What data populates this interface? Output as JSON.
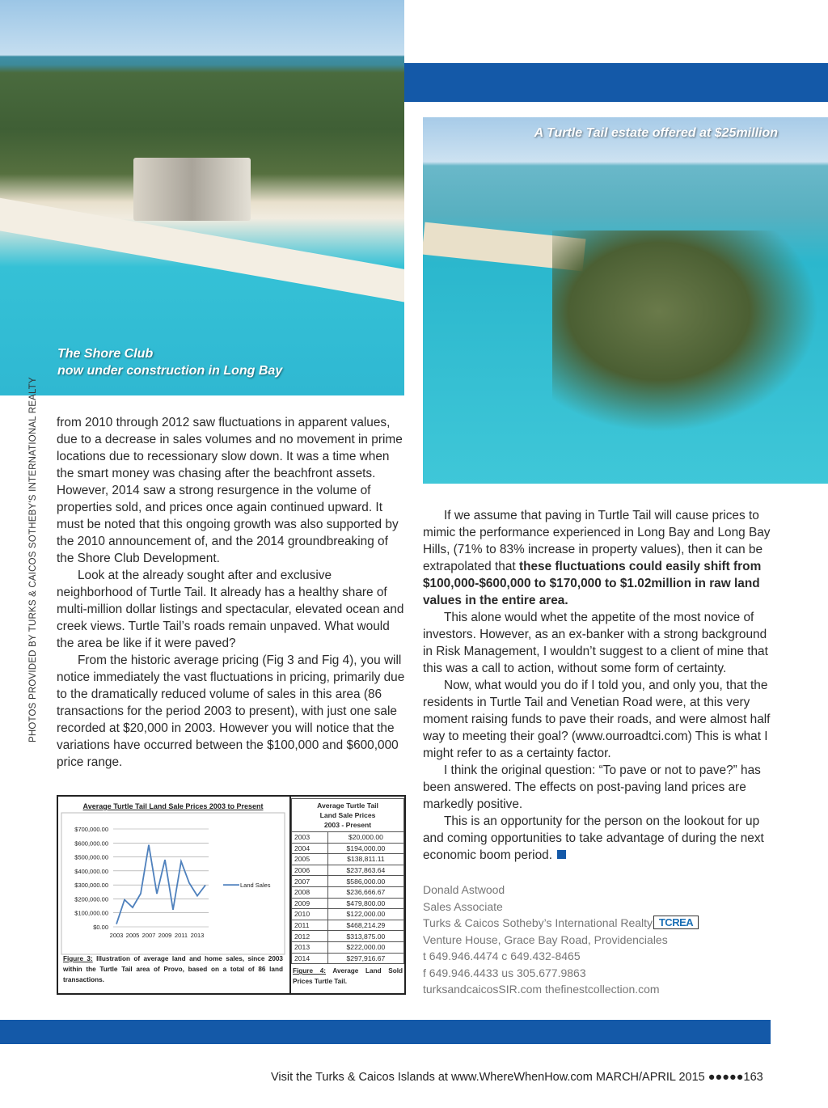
{
  "photos": {
    "left_caption": [
      "The Shore Club",
      "now under construction in Long Bay"
    ],
    "right_caption": "A Turtle Tail estate offered at $25million"
  },
  "sidebar_credit": "PHOTOS PROVIDED BY TURKS & CAICOS SOTHEBY'S INTERNATIONAL REALTY",
  "left_column": [
    "from 2010 through 2012 saw fluctuations in apparent values, due to a decrease in sales volumes and no movement in prime locations due to recessionary slow down. It was a time when the smart money was chasing after the beachfront assets. However, 2014 saw a strong resurgence in the volume of properties sold, and prices once again continued upward. It must be noted that this ongoing growth was also supported by the 2010 announcement of, and the 2014 groundbreaking of the Shore Club Development.",
    "Look at the already sought after and exclusive neighborhood of Turtle Tail. It already has a healthy share of multi-million dollar listings and spectacular, elevated ocean and creek views. Turtle Tail’s roads remain unpaved. What would the area be like if it were paved?",
    "From the historic average pricing (Fig 3 and Fig 4), you will notice immediately the vast fluctuations in pricing, primarily due to the dramatically reduced volume of sales in this area (86 transactions for the period 2003 to present), with just one sale recorded at $20,000 in 2003. However you will notice that the variations have occurred between the $100,000 and $600,000 price range."
  ],
  "right_column": {
    "p1_start": "If we assume that paving in Turtle Tail will cause prices to mimic the performance experienced in Long Bay and Long Bay Hills, (71% to 83% increase in property values), then it can be extrapolated that ",
    "p1_bold": "these fluctuations could easily shift from $100,000-$600,000 to $170,000 to $1.02million in raw land values in the entire area.",
    "p2": "This alone would whet the appetite of the most novice of investors. However, as an ex-banker with a strong background in Risk Management, I wouldn’t suggest to a client of mine that this was a call to action, without some form of certainty.",
    "p3": "Now, what would you do if I told you, and only you, that the residents in Turtle Tail and Venetian Road were, at this very moment raising funds to pave their roads, and were almost half way to meeting their goal? (www.ourroadtci.com) This is what I might refer to as a certainty factor.",
    "p4": "I think the original question: “To pave or not to pave?” has been answered. The effects on post-paving land prices are markedly positive.",
    "p5": "This is an opportunity for the person on the lookout for up and coming opportunities to take advantage of during the next economic boom period."
  },
  "signature": {
    "lines": [
      "Donald Astwood",
      "Sales Associate",
      "Turks & Caicos Sotheby’s International Realty",
      "Venture House, Grace Bay Road, Providenciales",
      "t 649.946.4474  c 649.432-8465",
      "f 649.946.4433  us 305.677.9863",
      "turksandcaicosSIR.com   thefinestcollection.com"
    ],
    "logo": "TCREA"
  },
  "figure4": {
    "header": [
      "Average Turtle Tail",
      "Land Sale Prices",
      "2003 - Present"
    ],
    "rows": [
      [
        "2003",
        "$20,000.00"
      ],
      [
        "2004",
        "$194,000.00"
      ],
      [
        "2005",
        "$138,811.11"
      ],
      [
        "2006",
        "$237,863.64"
      ],
      [
        "2007",
        "$586,000.00"
      ],
      [
        "2008",
        "$236,666.67"
      ],
      [
        "2009",
        "$479,800.00"
      ],
      [
        "2010",
        "$122,000.00"
      ],
      [
        "2011",
        "$468,214.29"
      ],
      [
        "2012",
        "$313,875.00"
      ],
      [
        "2013",
        "$222,000.00"
      ],
      [
        "2014",
        "$297,916.67"
      ]
    ],
    "caption_label": "Figure 4:",
    "caption": " Average Land Sold Prices Turtle Tail."
  },
  "figure3": {
    "caption_label": "Figure 3:",
    "caption": " Illustration of average land and home sales, since 2003 within the Turtle Tail area of Provo, based on a total of 86 land transactions."
  },
  "chart_data": {
    "type": "line",
    "title": "Average Turtle Tail Land Sale Prices 2003 to Present",
    "x": [
      2003,
      2004,
      2005,
      2006,
      2007,
      2008,
      2009,
      2010,
      2011,
      2012,
      2013,
      2014
    ],
    "series": [
      {
        "name": "Land Sales",
        "values": [
          20000,
          194000,
          138811.11,
          237863.64,
          586000,
          236666.67,
          479800,
          122000,
          468214.29,
          313875,
          222000,
          297916.67
        ]
      }
    ],
    "ylim": [
      0,
      700000
    ],
    "yticks": [
      "$0.00",
      "$100,000.00",
      "$200,000.00",
      "$300,000.00",
      "$400,000.00",
      "$500,000.00",
      "$600,000.00",
      "$700,000.00"
    ],
    "xticks": [
      "2003",
      "2005",
      "2007",
      "2009",
      "2011",
      "2013"
    ],
    "grid": true,
    "legend": "right",
    "color": "#4f81bd"
  },
  "footer": {
    "text": "Visit the Turks & Caicos Islands at www.WhereWhenHow.com   MARCH/APRIL 2015 ●●●●●",
    "page": "163"
  },
  "colors": {
    "brand_blue": "#1459a8"
  }
}
